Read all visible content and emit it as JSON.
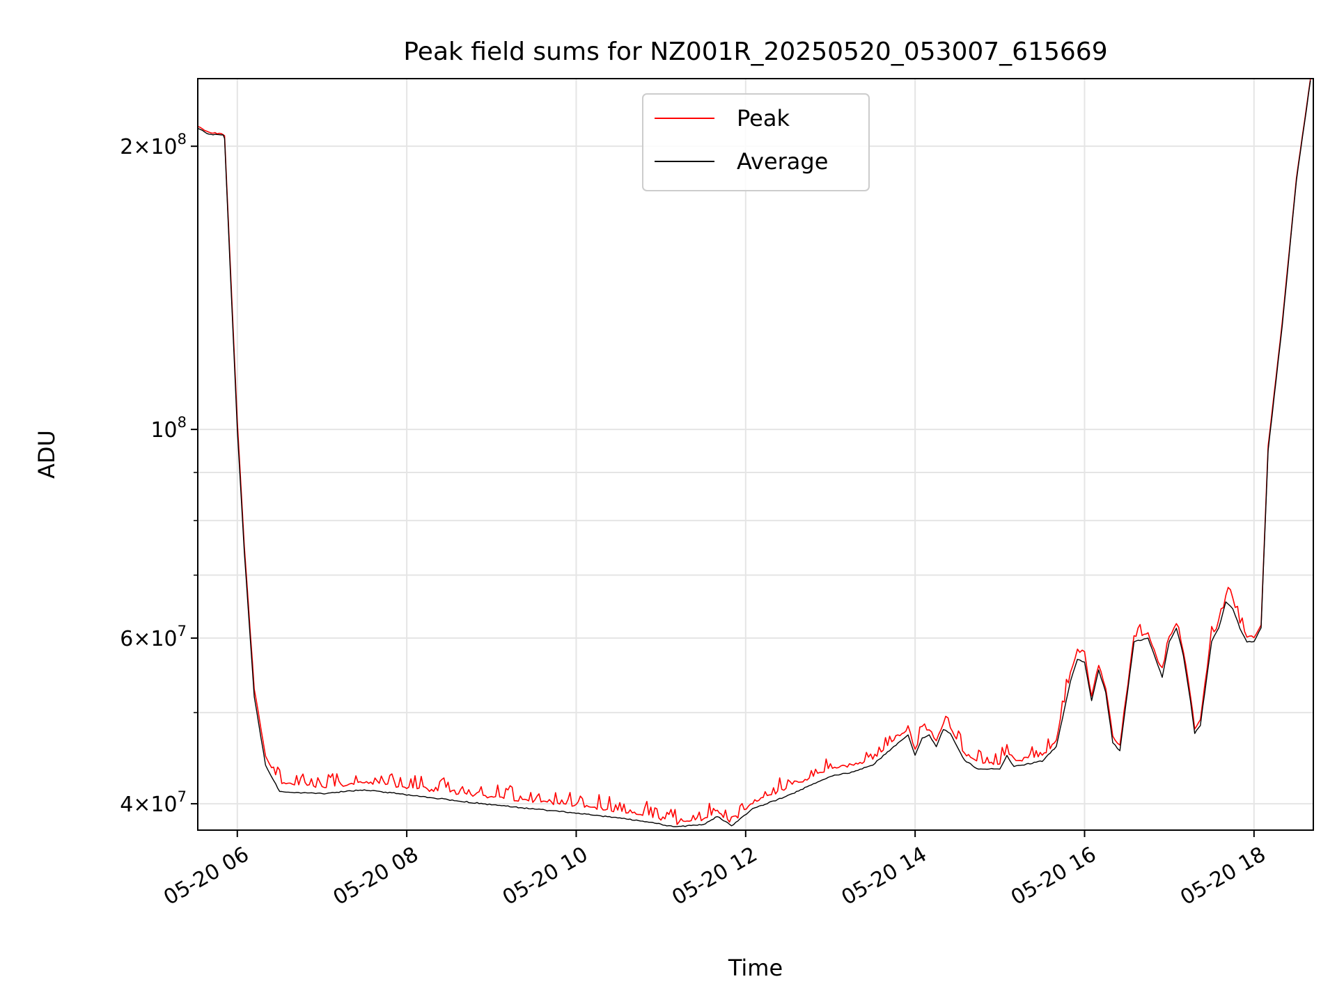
{
  "chart_data": {
    "type": "line",
    "title": "Peak field sums for NZ001R_20250520_053007_615669",
    "xlabel": "Time",
    "ylabel": "ADU",
    "y_scale": "log",
    "ylim": [
      37500000,
      236000000
    ],
    "xlim": [
      "2025-05-20 05:32",
      "2025-05-20 18:42"
    ],
    "x_ticks": [
      {
        "value": "2025-05-20 06:00",
        "label": "05-20 06"
      },
      {
        "value": "2025-05-20 08:00",
        "label": "05-20 08"
      },
      {
        "value": "2025-05-20 10:00",
        "label": "05-20 10"
      },
      {
        "value": "2025-05-20 12:00",
        "label": "05-20 12"
      },
      {
        "value": "2025-05-20 14:00",
        "label": "05-20 14"
      },
      {
        "value": "2025-05-20 16:00",
        "label": "05-20 16"
      },
      {
        "value": "2025-05-20 18:00",
        "label": "05-20 18"
      }
    ],
    "y_ticks": [
      {
        "value": 40000000,
        "mantissa": "4",
        "exponent": "7"
      },
      {
        "value": 60000000,
        "mantissa": "6",
        "exponent": "7"
      },
      {
        "value": 100000000,
        "mantissa": "",
        "exponent": "8"
      },
      {
        "value": 200000000,
        "mantissa": "2",
        "exponent": "8"
      }
    ],
    "y_minor_ticks": [
      50000000,
      70000000,
      80000000,
      90000000,
      300000000
    ],
    "grid": true,
    "legend_position": "top-center",
    "series": [
      {
        "name": "Peak",
        "color": "#ff0000",
        "spiky": true,
        "points": [
          [
            "2025-05-20 05:32",
            210000000
          ],
          [
            "2025-05-20 05:40",
            207000000
          ],
          [
            "2025-05-20 05:50",
            206000000
          ],
          [
            "2025-05-20 05:51",
            205000000
          ],
          [
            "2025-05-20 05:55",
            150000000
          ],
          [
            "2025-05-20 06:00",
            102000000
          ],
          [
            "2025-05-20 06:05",
            75000000
          ],
          [
            "2025-05-20 06:12",
            53000000
          ],
          [
            "2025-05-20 06:20",
            45000000
          ],
          [
            "2025-05-20 06:30",
            42000000
          ],
          [
            "2025-05-20 07:00",
            41500000
          ],
          [
            "2025-05-20 07:30",
            42000000
          ],
          [
            "2025-05-20 08:00",
            41500000
          ],
          [
            "2025-05-20 09:00",
            40500000
          ],
          [
            "2025-05-20 10:00",
            39700000
          ],
          [
            "2025-05-20 10:50",
            38800000
          ],
          [
            "2025-05-20 11:10",
            38000000
          ],
          [
            "2025-05-20 11:30",
            38300000
          ],
          [
            "2025-05-20 11:40",
            39200000
          ],
          [
            "2025-05-20 11:50",
            38000000
          ],
          [
            "2025-05-20 12:05",
            40000000
          ],
          [
            "2025-05-20 12:30",
            41500000
          ],
          [
            "2025-05-20 13:00",
            43500000
          ],
          [
            "2025-05-20 13:15",
            43800000
          ],
          [
            "2025-05-20 13:30",
            44500000
          ],
          [
            "2025-05-20 13:45",
            46500000
          ],
          [
            "2025-05-20 13:55",
            47800000
          ],
          [
            "2025-05-20 14:00",
            45500000
          ],
          [
            "2025-05-20 14:05",
            47500000
          ],
          [
            "2025-05-20 14:10",
            47800000
          ],
          [
            "2025-05-20 14:15",
            46500000
          ],
          [
            "2025-05-20 14:20",
            48500000
          ],
          [
            "2025-05-20 14:25",
            48000000
          ],
          [
            "2025-05-20 14:35",
            45000000
          ],
          [
            "2025-05-20 14:45",
            44000000
          ],
          [
            "2025-05-20 15:00",
            44000000
          ],
          [
            "2025-05-20 15:05",
            45500000
          ],
          [
            "2025-05-20 15:10",
            44200000
          ],
          [
            "2025-05-20 15:30",
            44800000
          ],
          [
            "2025-05-20 15:40",
            46500000
          ],
          [
            "2025-05-20 15:50",
            55000000
          ],
          [
            "2025-05-20 15:55",
            58000000
          ],
          [
            "2025-05-20 16:00",
            57000000
          ],
          [
            "2025-05-20 16:05",
            52000000
          ],
          [
            "2025-05-20 16:10",
            56000000
          ],
          [
            "2025-05-20 16:15",
            53000000
          ],
          [
            "2025-05-20 16:20",
            47000000
          ],
          [
            "2025-05-20 16:25",
            46000000
          ],
          [
            "2025-05-20 16:35",
            60000000
          ],
          [
            "2025-05-20 16:45",
            60500000
          ],
          [
            "2025-05-20 16:55",
            55000000
          ],
          [
            "2025-05-20 17:00",
            60000000
          ],
          [
            "2025-05-20 17:05",
            62000000
          ],
          [
            "2025-05-20 17:10",
            58000000
          ],
          [
            "2025-05-20 17:15",
            52000000
          ],
          [
            "2025-05-20 17:18",
            48000000
          ],
          [
            "2025-05-20 17:22",
            49000000
          ],
          [
            "2025-05-20 17:30",
            60000000
          ],
          [
            "2025-05-20 17:35",
            62000000
          ],
          [
            "2025-05-20 17:40",
            66000000
          ],
          [
            "2025-05-20 17:45",
            65000000
          ],
          [
            "2025-05-20 17:50",
            62000000
          ],
          [
            "2025-05-20 17:55",
            60000000
          ],
          [
            "2025-05-20 18:00",
            60000000
          ],
          [
            "2025-05-20 18:05",
            62000000
          ],
          [
            "2025-05-20 18:10",
            96000000
          ],
          [
            "2025-05-20 18:20",
            130000000
          ],
          [
            "2025-05-20 18:30",
            185000000
          ],
          [
            "2025-05-20 18:40",
            236000000
          ]
        ]
      },
      {
        "name": "Average",
        "color": "#000000",
        "spiky": false,
        "points": [
          [
            "2025-05-20 05:32",
            209000000
          ],
          [
            "2025-05-20 05:40",
            206000000
          ],
          [
            "2025-05-20 05:50",
            205500000
          ],
          [
            "2025-05-20 05:51",
            204000000
          ],
          [
            "2025-05-20 05:55",
            148000000
          ],
          [
            "2025-05-20 06:00",
            100000000
          ],
          [
            "2025-05-20 06:05",
            74000000
          ],
          [
            "2025-05-20 06:12",
            52000000
          ],
          [
            "2025-05-20 06:20",
            44000000
          ],
          [
            "2025-05-20 06:30",
            41200000
          ],
          [
            "2025-05-20 07:00",
            41000000
          ],
          [
            "2025-05-20 07:30",
            41400000
          ],
          [
            "2025-05-20 08:00",
            40900000
          ],
          [
            "2025-05-20 09:00",
            39900000
          ],
          [
            "2025-05-20 10:00",
            39100000
          ],
          [
            "2025-05-20 10:50",
            38300000
          ],
          [
            "2025-05-20 11:10",
            37800000
          ],
          [
            "2025-05-20 11:30",
            38000000
          ],
          [
            "2025-05-20 11:40",
            38800000
          ],
          [
            "2025-05-20 11:50",
            37900000
          ],
          [
            "2025-05-20 12:05",
            39500000
          ],
          [
            "2025-05-20 12:30",
            40800000
          ],
          [
            "2025-05-20 13:00",
            42800000
          ],
          [
            "2025-05-20 13:15",
            43200000
          ],
          [
            "2025-05-20 13:30",
            44000000
          ],
          [
            "2025-05-20 13:45",
            46000000
          ],
          [
            "2025-05-20 13:55",
            47300000
          ],
          [
            "2025-05-20 14:00",
            45000000
          ],
          [
            "2025-05-20 14:05",
            47000000
          ],
          [
            "2025-05-20 14:10",
            47300000
          ],
          [
            "2025-05-20 14:15",
            46000000
          ],
          [
            "2025-05-20 14:20",
            48000000
          ],
          [
            "2025-05-20 14:25",
            47500000
          ],
          [
            "2025-05-20 14:35",
            44500000
          ],
          [
            "2025-05-20 14:45",
            43500000
          ],
          [
            "2025-05-20 15:00",
            43600000
          ],
          [
            "2025-05-20 15:05",
            45000000
          ],
          [
            "2025-05-20 15:10",
            43800000
          ],
          [
            "2025-05-20 15:30",
            44400000
          ],
          [
            "2025-05-20 15:40",
            46000000
          ],
          [
            "2025-05-20 15:50",
            54000000
          ],
          [
            "2025-05-20 15:55",
            57000000
          ],
          [
            "2025-05-20 16:00",
            56500000
          ],
          [
            "2025-05-20 16:05",
            51500000
          ],
          [
            "2025-05-20 16:10",
            55500000
          ],
          [
            "2025-05-20 16:15",
            52500000
          ],
          [
            "2025-05-20 16:20",
            46500000
          ],
          [
            "2025-05-20 16:25",
            45500000
          ],
          [
            "2025-05-20 16:35",
            59500000
          ],
          [
            "2025-05-20 16:45",
            60000000
          ],
          [
            "2025-05-20 16:55",
            54500000
          ],
          [
            "2025-05-20 17:00",
            59500000
          ],
          [
            "2025-05-20 17:05",
            61500000
          ],
          [
            "2025-05-20 17:10",
            57500000
          ],
          [
            "2025-05-20 17:15",
            51500000
          ],
          [
            "2025-05-20 17:18",
            47500000
          ],
          [
            "2025-05-20 17:22",
            48500000
          ],
          [
            "2025-05-20 17:30",
            59500000
          ],
          [
            "2025-05-20 17:35",
            61500000
          ],
          [
            "2025-05-20 17:40",
            65500000
          ],
          [
            "2025-05-20 17:45",
            64500000
          ],
          [
            "2025-05-20 17:50",
            61500000
          ],
          [
            "2025-05-20 17:55",
            59500000
          ],
          [
            "2025-05-20 18:00",
            59500000
          ],
          [
            "2025-05-20 18:05",
            61500000
          ],
          [
            "2025-05-20 18:10",
            95000000
          ],
          [
            "2025-05-20 18:20",
            129000000
          ],
          [
            "2025-05-20 18:30",
            184000000
          ],
          [
            "2025-05-20 18:40",
            235000000
          ]
        ]
      }
    ]
  }
}
